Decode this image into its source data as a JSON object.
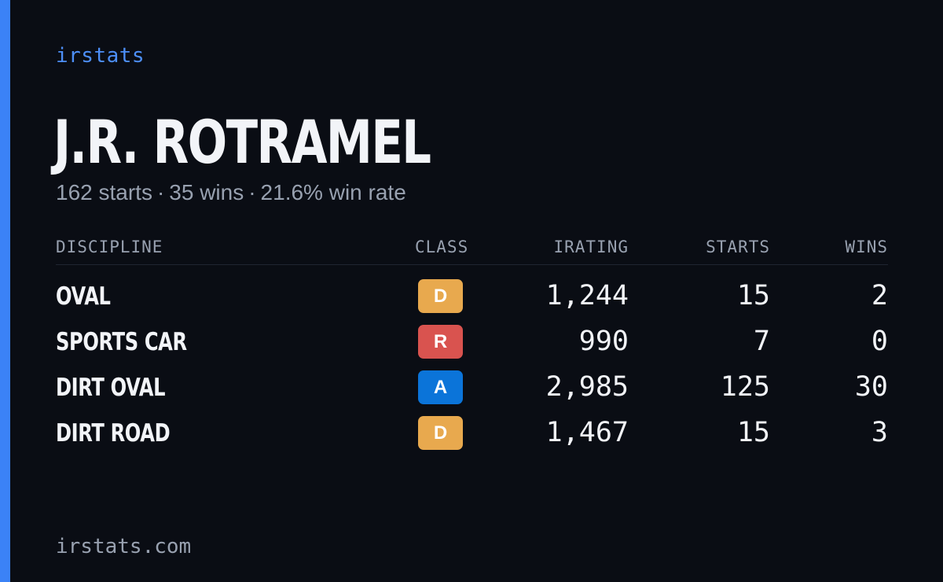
{
  "brand": "irstats",
  "driver": {
    "name": "J.R. ROTRAMEL"
  },
  "summary": {
    "starts": "162 starts",
    "wins": "35 wins",
    "win_rate": "21.6% win rate",
    "separator": "·"
  },
  "table": {
    "headers": {
      "discipline": "DISCIPLINE",
      "class": "CLASS",
      "irating": "IRATING",
      "starts": "STARTS",
      "wins": "WINS"
    },
    "rows": [
      {
        "discipline": "OVAL",
        "class": "D",
        "class_color": "#e8a94e",
        "irating": "1,244",
        "starts": "15",
        "wins": "2"
      },
      {
        "discipline": "SPORTS CAR",
        "class": "R",
        "class_color": "#d9534f",
        "irating": "990",
        "starts": "7",
        "wins": "0"
      },
      {
        "discipline": "DIRT OVAL",
        "class": "A",
        "class_color": "#0b74d9",
        "irating": "2,985",
        "starts": "125",
        "wins": "30"
      },
      {
        "discipline": "DIRT ROAD",
        "class": "D",
        "class_color": "#e8a94e",
        "irating": "1,467",
        "starts": "15",
        "wins": "3"
      }
    ]
  },
  "footer": {
    "url": "irstats.com"
  },
  "colors": {
    "accent": "#3b82f6",
    "background": "#0a0d14"
  }
}
